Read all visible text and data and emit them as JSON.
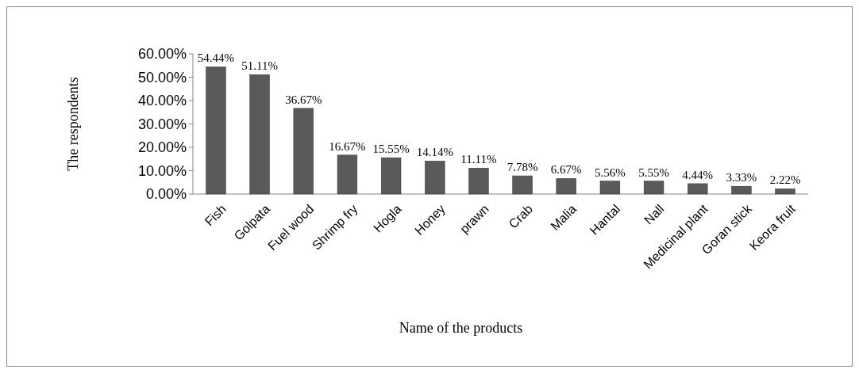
{
  "chart_data": {
    "type": "bar",
    "xlabel": "Name of the products",
    "ylabel": "The respondents",
    "categories": [
      "Fish",
      "Golpata",
      "Fuel wood",
      "Shrimp fry",
      "Hogla",
      "Honey",
      "prawn",
      "Crab",
      "Malia",
      "Hantal",
      "Nall",
      "Medicinal plant",
      "Goran stick",
      "Keora fruit"
    ],
    "values": [
      54.44,
      51.11,
      36.67,
      16.67,
      15.55,
      14.14,
      11.11,
      7.78,
      6.67,
      5.56,
      5.55,
      4.44,
      3.33,
      2.22
    ],
    "value_labels": [
      "54.44%",
      "51.11%",
      "36.67%",
      "16.67%",
      "15.55%",
      "14.14%",
      "11.11%",
      "7.78%",
      "6.67%",
      "5.56%",
      "5.55%",
      "4.44%",
      "3.33%",
      "2.22%"
    ],
    "color": "#5a5a5a",
    "ylim": [
      0,
      60
    ],
    "yticks": [
      {
        "value": 0,
        "label": "0.00%"
      },
      {
        "value": 10,
        "label": "10.00%"
      },
      {
        "value": 20,
        "label": "20.00%"
      },
      {
        "value": 30,
        "label": "30.00%"
      },
      {
        "value": 40,
        "label": "40.00%"
      },
      {
        "value": 50,
        "label": "50.00%"
      },
      {
        "value": 60,
        "label": "60.00%"
      }
    ],
    "grid": false
  }
}
